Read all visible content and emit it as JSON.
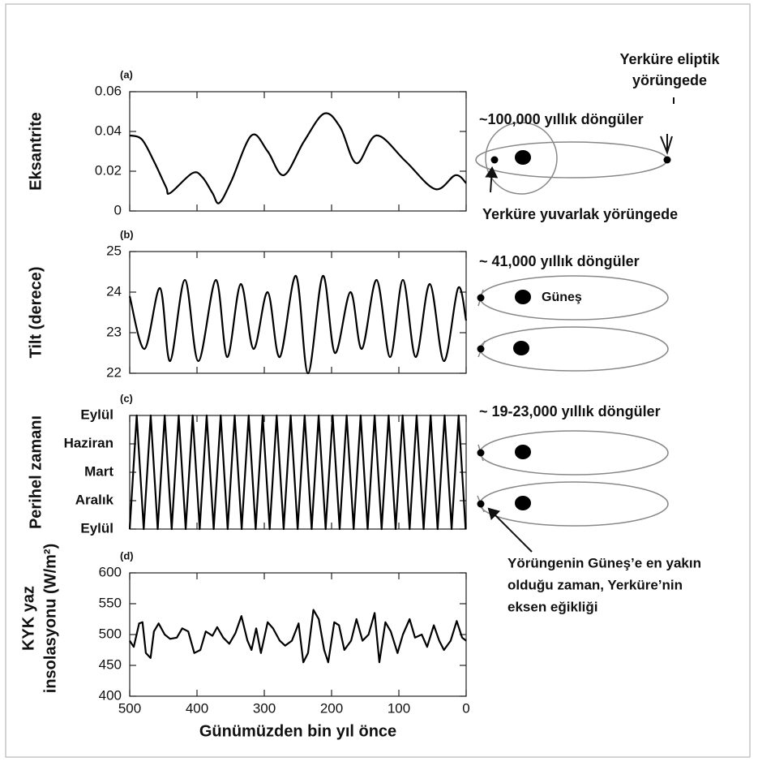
{
  "chart_data": [
    {
      "type": "line",
      "panel_label": "(a)",
      "ylabel": "Eksantrite",
      "color": "#000000",
      "x": [
        500,
        482,
        464,
        446,
        440,
        407,
        392,
        377,
        367,
        349,
        319,
        295,
        271,
        241,
        211,
        187,
        163,
        133,
        90,
        46,
        16,
        0
      ],
      "values": [
        0.038,
        0.036,
        0.025,
        0.012,
        0.009,
        0.019,
        0.017,
        0.009,
        0.004,
        0.015,
        0.038,
        0.03,
        0.018,
        0.035,
        0.049,
        0.042,
        0.024,
        0.038,
        0.025,
        0.011,
        0.018,
        0.014
      ],
      "xlim": [
        500,
        0
      ],
      "xticks": [
        500,
        400,
        300,
        200,
        100,
        0
      ],
      "ylim": [
        0,
        0.06
      ],
      "yticks": [
        0,
        0.02,
        0.04,
        0.06
      ]
    },
    {
      "type": "line",
      "panel_label": "(b)",
      "ylabel": "Tilt (derece)",
      "color": "#000000",
      "x": [
        500,
        478,
        455,
        440,
        418,
        398,
        372,
        355,
        335,
        316,
        295,
        277,
        253,
        235,
        213,
        195,
        172,
        155,
        133,
        113,
        94,
        75,
        54,
        33,
        12,
        0
      ],
      "values": [
        23.9,
        22.6,
        24.1,
        22.3,
        24.3,
        22.3,
        24.3,
        22.4,
        24.2,
        22.6,
        24.0,
        22.4,
        24.4,
        22.0,
        24.4,
        22.5,
        24.0,
        22.6,
        24.3,
        22.4,
        24.3,
        22.4,
        24.2,
        22.3,
        24.1,
        23.3
      ],
      "xlim": [
        500,
        0
      ],
      "xticks": [
        500,
        400,
        300,
        200,
        100,
        0
      ],
      "ylim": [
        22,
        25
      ],
      "yticks": [
        22,
        23,
        24,
        25
      ]
    },
    {
      "type": "line",
      "panel_label": "(c)",
      "ylabel": "Perihel zamanı",
      "color": "#000000",
      "x": [
        500,
        489.6,
        479.2,
        468.8,
        458.4,
        448,
        437.6,
        427.2,
        416.8,
        406.4,
        396,
        385.6,
        375.2,
        364.8,
        354.4,
        344,
        333.6,
        323.2,
        312.8,
        302.4,
        292,
        281.6,
        271.2,
        260.8,
        250.4,
        240,
        229.6,
        219.2,
        208.8,
        198.4,
        188,
        177.6,
        167.2,
        156.8,
        146.4,
        136,
        125.6,
        115.2,
        104.8,
        94.4,
        84,
        73.6,
        63.2,
        52.8,
        42.4,
        32,
        21.6,
        11.2,
        0.8
      ],
      "values": [
        0,
        360,
        0,
        360,
        0,
        360,
        0,
        360,
        0,
        360,
        0,
        360,
        0,
        360,
        0,
        360,
        0,
        360,
        0,
        360,
        0,
        360,
        0,
        360,
        0,
        360,
        0,
        360,
        0,
        360,
        0,
        360,
        0,
        360,
        0,
        360,
        0,
        360,
        0,
        360,
        0,
        360,
        0,
        360,
        0,
        360,
        0,
        360,
        0
      ],
      "xlim": [
        500,
        0
      ],
      "xticks": [
        500,
        400,
        300,
        200,
        100,
        0
      ],
      "ylim": [
        0,
        360
      ],
      "yticks": [
        {
          "value": 0,
          "label": "Eylül"
        },
        {
          "value": 90,
          "label": "Aralık"
        },
        {
          "value": 180,
          "label": "Mart"
        },
        {
          "value": 270,
          "label": "Haziran"
        },
        {
          "value": 360,
          "label": "Eylül"
        }
      ]
    },
    {
      "type": "line",
      "panel_label": "(d)",
      "ylabel": [
        "KYK yaz",
        "insolasyonu  (W/m²)"
      ],
      "xlabel": "Günümüzden  bin yıl önce",
      "color": "#000000",
      "x": [
        500,
        494,
        486,
        481,
        476,
        469,
        464,
        457,
        448,
        440,
        430,
        422,
        413,
        404,
        395,
        387,
        377,
        370,
        361,
        352,
        343,
        334,
        325,
        319,
        312,
        305,
        295,
        287,
        277,
        269,
        259,
        249,
        242,
        235,
        227,
        219,
        211,
        205,
        196,
        189,
        181,
        171,
        163,
        154,
        145,
        136,
        129,
        120,
        112,
        102,
        94,
        84,
        76,
        66,
        58,
        48,
        40,
        33,
        23,
        14,
        6,
        0
      ],
      "values": [
        490,
        480,
        518,
        520,
        470,
        462,
        505,
        518,
        500,
        493,
        495,
        510,
        505,
        470,
        475,
        505,
        498,
        512,
        495,
        485,
        502,
        530,
        490,
        475,
        510,
        470,
        520,
        510,
        490,
        482,
        490,
        518,
        455,
        470,
        540,
        525,
        475,
        455,
        520,
        515,
        475,
        490,
        525,
        490,
        500,
        535,
        455,
        520,
        505,
        470,
        500,
        525,
        495,
        500,
        480,
        515,
        490,
        475,
        490,
        522,
        495,
        490
      ],
      "xlim": [
        500,
        0
      ],
      "xticks": [
        500,
        400,
        300,
        200,
        100,
        0
      ],
      "ylim": [
        400,
        600
      ],
      "yticks": [
        400,
        450,
        500,
        550,
        600
      ]
    }
  ],
  "side_notes": {
    "eccentricity_orbit": [
      "Yerküre eliptik",
      "yörüngede"
    ],
    "eccentricity_cycle": "~100,000 yıllık döngüler",
    "circular_orbit": "Yerküre yuvarlak yörüngede",
    "tilt_cycle": "~ 41,000 yıllık döngüler",
    "sun": "Güneş",
    "precession_cycle": "~ 19-23,000 yıllık döngüler",
    "precession_note": [
      "Yörüngenin Güneş’e en yakın",
      "olduğu zaman, Yerküre’nin",
      "eksen eğikliği"
    ]
  }
}
